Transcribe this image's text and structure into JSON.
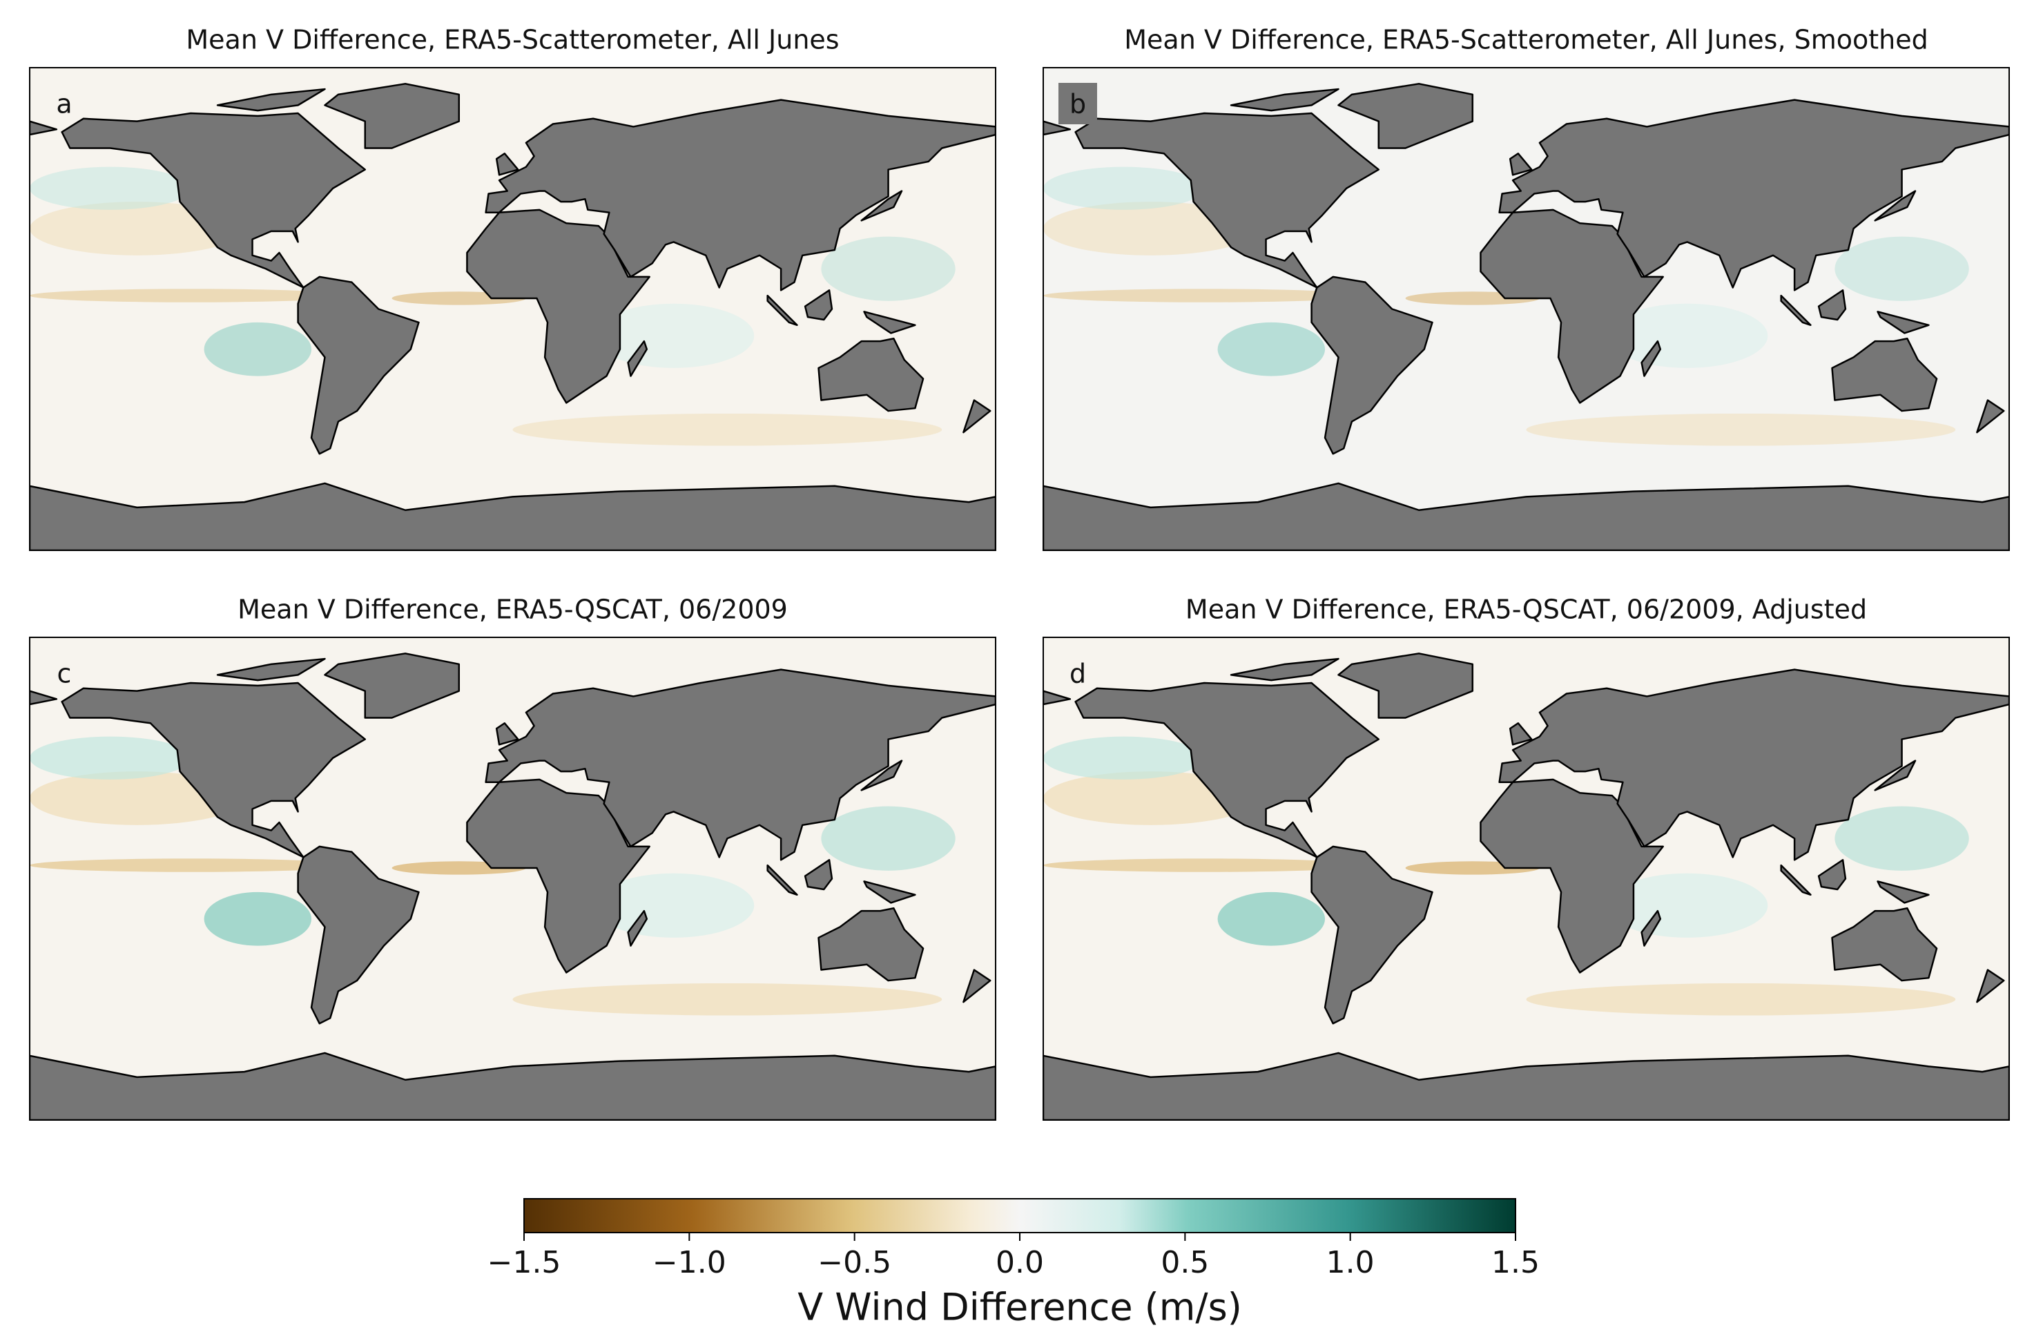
{
  "panels": [
    {
      "title": "Mean V Difference, ERA5-Scatterometer, All Junes",
      "label": "a"
    },
    {
      "title": "Mean V Difference, ERA5-Scatterometer, All Junes, Smoothed",
      "label": "b"
    },
    {
      "title": "Mean V Difference, ERA5-QSCAT, 06/2009",
      "label": "c"
    },
    {
      "title": "Mean V Difference, ERA5-QSCAT, 06/2009, Adjusted",
      "label": "d"
    }
  ],
  "colorbar": {
    "label": "V Wind Difference (m/s)",
    "lim": [
      -1.5,
      1.5
    ],
    "ticks": [
      {
        "value": -1.5,
        "label": "−1.5"
      },
      {
        "value": -1.0,
        "label": "−1.0"
      },
      {
        "value": -0.5,
        "label": "−0.5"
      },
      {
        "value": 0,
        "label": "0.0"
      },
      0.5,
      {
        "value": 1.0,
        "label": "1.0"
      },
      1.5
    ]
  }
}
